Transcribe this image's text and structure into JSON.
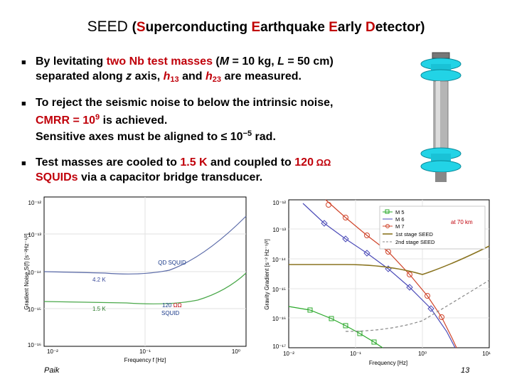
{
  "title": {
    "main": "SEED",
    "open": "(",
    "s": "S",
    "s_rest": "uperconducting ",
    "e1": "E",
    "e1_rest": "arthquake ",
    "e2": "E",
    "e2_rest": "arly ",
    "d": "D",
    "d_rest": "etector",
    "close": ")"
  },
  "bullet1": {
    "a": "By levitating ",
    "b": "two Nb test masses",
    "c": " (",
    "m": "M",
    "d": " = 10 kg, ",
    "l": "L",
    "e": " = 50 cm)",
    "line2a": "separated along ",
    "z": "z",
    "line2b": " axis, ",
    "h13": "h",
    "h13sub": "13",
    "and": " and ",
    "h23": "h",
    "h23sub": "23",
    "end": " are measured."
  },
  "bullet2": {
    "line1": "To reject the seismic noise to below the intrinsic noise,",
    "cmrr": "CMRR = 10",
    "cmrr_exp": "9",
    "rest": " is achieved."
  },
  "sensitive": {
    "text": "Sensitive axes must be aligned to ≤ 10",
    "exp": "−5",
    "rest": " rad."
  },
  "bullet3": {
    "a": "Test masses are cooled to ",
    "temp": "1.5 K",
    "b": " and coupled to ",
    "num": "120",
    "squids": "SQUIDs",
    "c": " via a capacitor bridge transducer."
  },
  "footer": {
    "author": "Paik",
    "page": "13"
  },
  "colors": {
    "red": "#c0000a",
    "cyan": "#22d3e6"
  },
  "left_chart": {
    "ylabel": "Gradient Noise S",
    "ylabel_rest": "(f) [s⁻²Hz⁻¹/²]",
    "xlabel": "Frequency f [Hz]",
    "yticks": [
      "10⁻¹²",
      "10⁻¹³",
      "10⁻¹⁴",
      "10⁻¹⁵",
      "10⁻¹⁶"
    ],
    "xticks": [
      "10⁻²",
      "10⁻¹",
      "10⁰"
    ],
    "labels": [
      "QD SQUID",
      "4.2 K",
      "1.5 K",
      "120",
      "SQUID"
    ]
  },
  "right_chart": {
    "ylabel": "Gravity Gradient [s⁻² Hz⁻¹/²]",
    "xlabel": "Frequency [Hz]",
    "yticks": [
      "10⁻¹²",
      "10⁻¹³",
      "10⁻¹⁴",
      "10⁻¹⁵",
      "10⁻¹⁶",
      "10⁻¹⁷"
    ],
    "xticks": [
      "10⁻²",
      "10⁻¹",
      "10⁰",
      "10¹"
    ],
    "legend": [
      "M 5",
      "M 6",
      "M 7",
      "1st stage SEED",
      "2nd stage SEED"
    ],
    "annotation": "at 70 km",
    "legend_m6_suffix": "at 70 km"
  }
}
